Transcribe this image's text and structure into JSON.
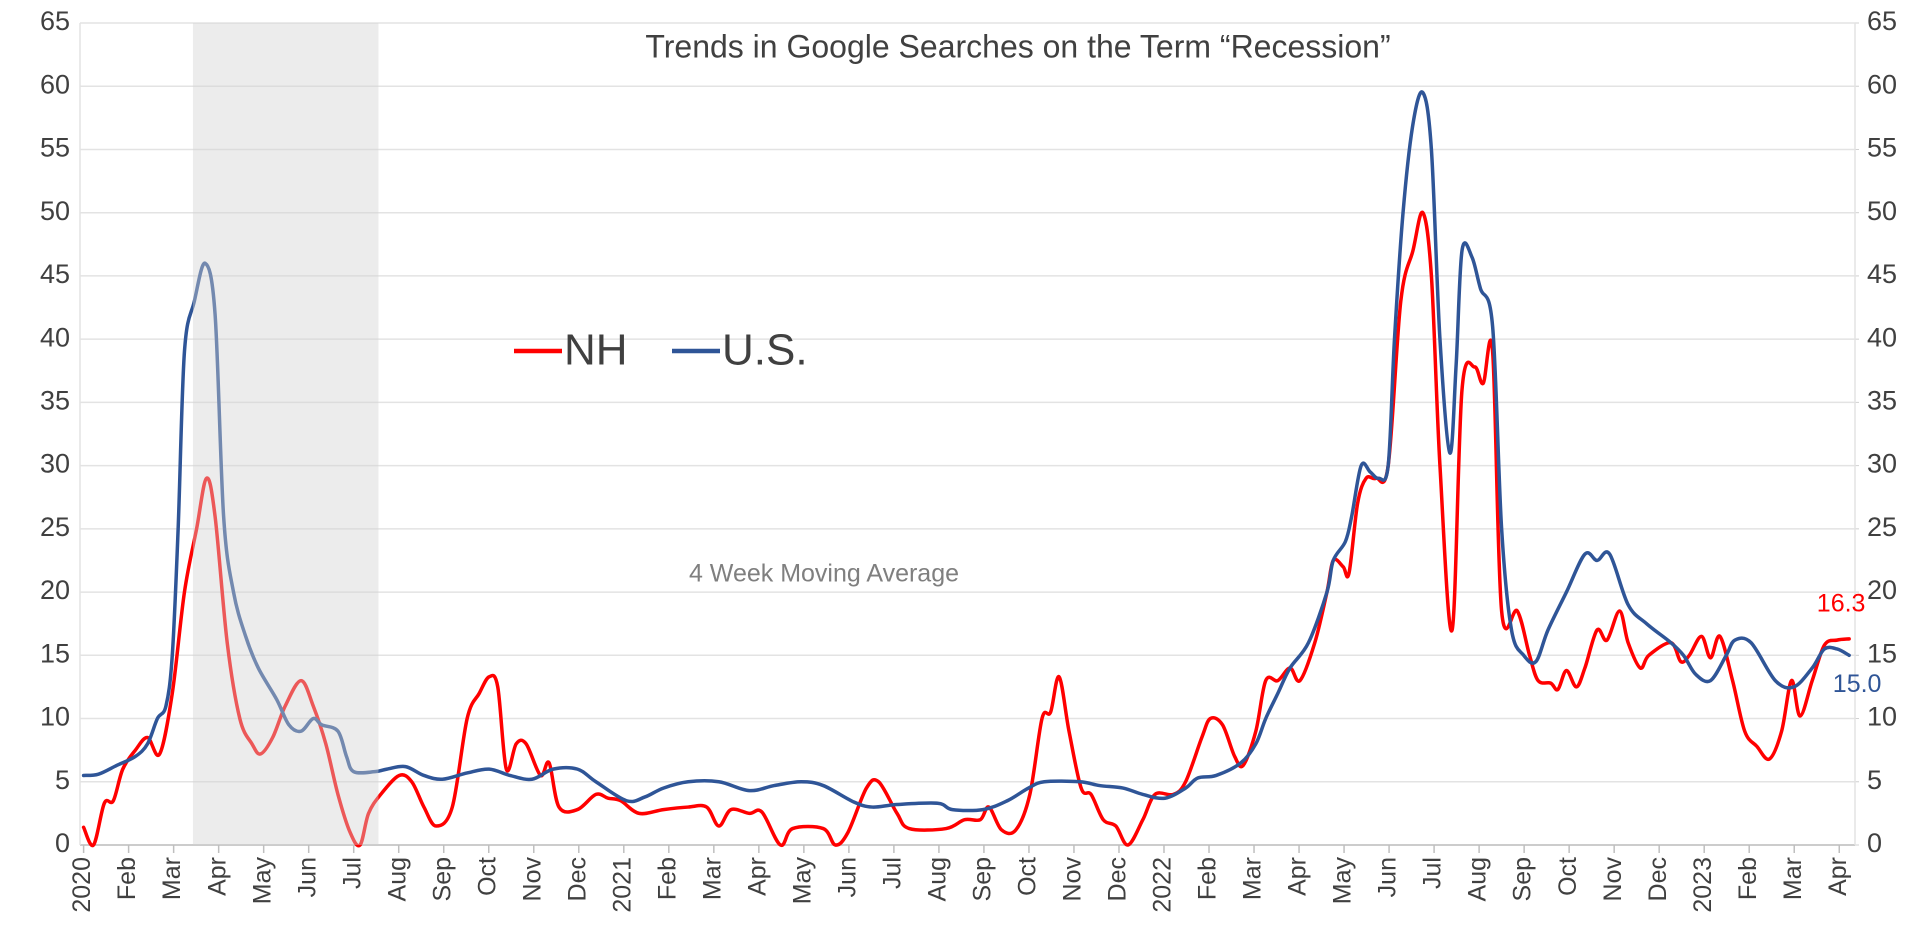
{
  "chart_data": {
    "type": "line",
    "title": "Trends in Google Searches on the Term “Recession”",
    "annotation": "4 Week Moving Average",
    "shaded_range": [
      2.43,
      6.55
    ],
    "grid": true,
    "xlim": [
      -0.08,
      39.35
    ],
    "xticks": [
      {
        "value": 0,
        "label": "2020"
      },
      {
        "value": 1,
        "label": "Feb"
      },
      {
        "value": 2,
        "label": "Mar"
      },
      {
        "value": 3,
        "label": "Apr"
      },
      {
        "value": 4,
        "label": "May"
      },
      {
        "value": 5,
        "label": "Jun"
      },
      {
        "value": 6,
        "label": "Jul"
      },
      {
        "value": 7,
        "label": "Aug"
      },
      {
        "value": 8,
        "label": "Sep"
      },
      {
        "value": 9,
        "label": "Oct"
      },
      {
        "value": 10,
        "label": "Nov"
      },
      {
        "value": 11,
        "label": "Dec"
      },
      {
        "value": 12,
        "label": "2021"
      },
      {
        "value": 13,
        "label": "Feb"
      },
      {
        "value": 14,
        "label": "Mar"
      },
      {
        "value": 15,
        "label": "Apr"
      },
      {
        "value": 16,
        "label": "May"
      },
      {
        "value": 17,
        "label": "Jun"
      },
      {
        "value": 18,
        "label": "Jul"
      },
      {
        "value": 19,
        "label": "Aug"
      },
      {
        "value": 20,
        "label": "Sep"
      },
      {
        "value": 21,
        "label": "Oct"
      },
      {
        "value": 22,
        "label": "Nov"
      },
      {
        "value": 23,
        "label": "Dec"
      },
      {
        "value": 24,
        "label": "2022"
      },
      {
        "value": 25,
        "label": "Feb"
      },
      {
        "value": 26,
        "label": "Mar"
      },
      {
        "value": 27,
        "label": "Apr"
      },
      {
        "value": 28,
        "label": "May"
      },
      {
        "value": 29,
        "label": "Jun"
      },
      {
        "value": 30,
        "label": "Jul"
      },
      {
        "value": 31,
        "label": "Aug"
      },
      {
        "value": 32,
        "label": "Sep"
      },
      {
        "value": 33,
        "label": "Oct"
      },
      {
        "value": 34,
        "label": "Nov"
      },
      {
        "value": 35,
        "label": "Dec"
      },
      {
        "value": 36,
        "label": "2023"
      },
      {
        "value": 37,
        "label": "Feb"
      },
      {
        "value": 38,
        "label": "Mar"
      },
      {
        "value": 39,
        "label": "Apr"
      }
    ],
    "ylim": [
      0,
      65
    ],
    "yticks": [
      0,
      5,
      10,
      15,
      20,
      25,
      30,
      35,
      40,
      45,
      50,
      55,
      60,
      65
    ],
    "y2lim": [
      0,
      65
    ],
    "y2ticks": [
      0,
      5,
      10,
      15,
      20,
      25,
      30,
      35,
      40,
      45,
      50,
      55,
      60,
      65
    ],
    "series": [
      {
        "name": "NH",
        "color": "#ff0000",
        "x": [
          0,
          0.22,
          0.46,
          0.66,
          0.87,
          1.15,
          1.42,
          1.69,
          1.97,
          2.24,
          2.51,
          2.73,
          2.92,
          3.19,
          3.47,
          3.74,
          3.93,
          4.2,
          4.48,
          4.83,
          5.1,
          5.38,
          5.65,
          5.92,
          6.14,
          6.33,
          6.6,
          7.01,
          7.29,
          7.56,
          7.83,
          8.19,
          8.52,
          8.79,
          9.01,
          9.2,
          9.39,
          9.61,
          9.83,
          10.15,
          10.34,
          10.56,
          10.97,
          11.38,
          11.65,
          11.93,
          12.34,
          12.88,
          13.43,
          13.84,
          14.11,
          14.38,
          14.79,
          15.07,
          15.48,
          15.75,
          16.43,
          16.7,
          16.98,
          17.39,
          17.66,
          18.07,
          18.34,
          19.16,
          19.57,
          19.92,
          20.11,
          20.39,
          20.71,
          21.02,
          21.29,
          21.48,
          21.67,
          21.89,
          22.16,
          22.38,
          22.65,
          22.93,
          23.2,
          23.53,
          23.8,
          24.21,
          24.48,
          24.84,
          25.03,
          25.3,
          25.57,
          25.76,
          26.04,
          26.26,
          26.53,
          26.8,
          27.02,
          27.35,
          27.62,
          27.76,
          27.98,
          28.11,
          28.3,
          28.49,
          28.71,
          28.98,
          29.26,
          29.53,
          29.75,
          29.94,
          30.13,
          30.4,
          30.62,
          30.9,
          31.09,
          31.3,
          31.5,
          31.85,
          32.12,
          32.31,
          32.59,
          32.75,
          32.94,
          33.16,
          33.35,
          33.62,
          33.84,
          34.12,
          34.31,
          34.58,
          34.77,
          35.26,
          35.48,
          35.67,
          35.94,
          36.14,
          36.35,
          36.63,
          36.9,
          37.17,
          37.45,
          37.72,
          37.94,
          38.13,
          38.4,
          38.67,
          38.95,
          39.22
        ],
        "values": [
          1.4,
          0,
          3.3,
          3.5,
          6,
          7.5,
          8.5,
          7.2,
          12,
          20,
          25,
          29,
          26,
          16,
          10,
          8,
          7.2,
          8.5,
          11,
          13,
          11,
          8,
          4,
          1,
          0,
          2.5,
          4,
          5.5,
          5,
          3,
          1.5,
          3,
          10,
          12,
          13.3,
          12.5,
          6,
          8,
          8,
          5.5,
          6.5,
          3,
          2.8,
          4,
          3.7,
          3.5,
          2.5,
          2.8,
          3,
          3,
          1.5,
          2.8,
          2.5,
          2.6,
          0,
          1.3,
          1.3,
          0,
          1,
          4.5,
          5,
          2.5,
          1.3,
          1.3,
          2,
          2,
          3,
          1.2,
          1.2,
          4,
          10,
          10.5,
          13.3,
          9,
          4.5,
          4,
          2,
          1.5,
          0,
          2,
          4,
          4,
          5,
          8.5,
          10,
          9.5,
          7,
          6.3,
          9,
          13,
          13,
          14,
          13,
          16,
          20,
          22.5,
          22,
          21.5,
          27,
          29,
          29,
          30,
          43,
          47,
          50,
          45,
          30,
          17,
          36,
          37.8,
          36.5,
          39,
          18.5,
          18.5,
          15,
          13,
          12.8,
          12.3,
          13.8,
          12.5,
          14,
          17,
          16.2,
          18.5,
          16,
          14,
          15,
          16,
          14.5,
          15,
          16.5,
          14.8,
          16.5,
          13,
          9,
          7.8,
          6.8,
          9,
          13,
          10.2,
          13,
          15.8,
          16.2,
          16.3
        ],
        "value_labels": {
          "143": "16.3"
        }
      },
      {
        "name": "U.S.",
        "color": "#2f5597",
        "x": [
          0,
          0.33,
          0.74,
          1.15,
          1.42,
          1.64,
          1.83,
          1.97,
          2.1,
          2.24,
          2.46,
          2.7,
          2.92,
          3.11,
          3.33,
          3.6,
          3.88,
          4.29,
          4.56,
          4.83,
          5.1,
          5.29,
          5.65,
          5.84,
          6.0,
          6.47,
          6.74,
          7.15,
          7.56,
          7.97,
          8.52,
          9.01,
          9.47,
          9.96,
          10.43,
          10.97,
          11.38,
          12.06,
          12.47,
          12.88,
          13.43,
          14.11,
          14.79,
          15.34,
          15.94,
          16.43,
          17.11,
          17.52,
          18.07,
          18.97,
          19.3,
          19.98,
          20.52,
          20.99,
          21.34,
          22.13,
          22.57,
          23.09,
          23.53,
          24.02,
          24.48,
          24.75,
          25.16,
          25.71,
          26.04,
          26.26,
          26.53,
          26.8,
          27.21,
          27.62,
          27.76,
          28.03,
          28.17,
          28.38,
          28.58,
          28.77,
          28.98,
          29.12,
          29.31,
          29.53,
          29.75,
          29.94,
          30.13,
          30.35,
          30.49,
          30.62,
          30.84,
          31.03,
          31.3,
          31.5,
          31.72,
          31.99,
          32.26,
          32.53,
          32.94,
          33.35,
          33.62,
          33.9,
          34.31,
          34.72,
          35.26,
          35.54,
          35.81,
          36.14,
          36.49,
          36.68,
          37.04,
          37.58,
          37.99,
          38.4,
          38.67,
          38.95,
          39.22
        ],
        "values": [
          5.5,
          5.6,
          6.3,
          7,
          8,
          10,
          11,
          15,
          25,
          39,
          43,
          46,
          42,
          26,
          20,
          16.5,
          14,
          11.5,
          9.5,
          9,
          10,
          9.5,
          9,
          7,
          5.8,
          5.8,
          6,
          6.2,
          5.5,
          5.2,
          5.7,
          6,
          5.5,
          5.2,
          6,
          6,
          5,
          3.5,
          3.8,
          4.5,
          5,
          5,
          4.3,
          4.7,
          5,
          4.7,
          3.4,
          3,
          3.2,
          3.3,
          2.8,
          2.8,
          3.5,
          4.5,
          5,
          5,
          4.7,
          4.5,
          4,
          3.7,
          4.5,
          5.3,
          5.5,
          6.5,
          8,
          10,
          12,
          14,
          16,
          20,
          22.5,
          24,
          26,
          30,
          29.5,
          29,
          30,
          40,
          50,
          57,
          59.5,
          55,
          40,
          31,
          38,
          47,
          46.5,
          44,
          41,
          25,
          17,
          15,
          14.5,
          17,
          20,
          23,
          22.5,
          23,
          19,
          17.5,
          16,
          15,
          13.5,
          13,
          15,
          16.2,
          16,
          13,
          12.5,
          14,
          15.5,
          15.5,
          15
        ],
        "value_labels": {
          "112": "15.0"
        }
      }
    ]
  }
}
